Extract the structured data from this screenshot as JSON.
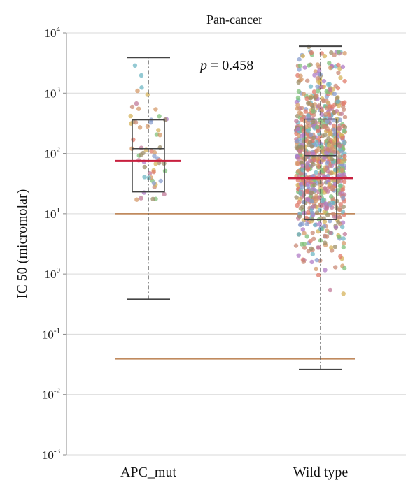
{
  "chart_data": {
    "type": "box-scatter",
    "title": "Pan-cancer",
    "ylabel": "IC 50 (micromolar)",
    "xlabel": "",
    "yscale": "log10",
    "ylim": [
      0.001,
      10000
    ],
    "yticks": [
      {
        "value": 0.001,
        "base": "10",
        "exp": "-3"
      },
      {
        "value": 0.01,
        "base": "10",
        "exp": "-2"
      },
      {
        "value": 0.1,
        "base": "10",
        "exp": "-1"
      },
      {
        "value": 1,
        "base": "10",
        "exp": "0"
      },
      {
        "value": 10,
        "base": "10",
        "exp": "1"
      },
      {
        "value": 100,
        "base": "10",
        "exp": "2"
      },
      {
        "value": 1000,
        "base": "10",
        "exp": "3"
      },
      {
        "value": 10000,
        "base": "10",
        "exp": "4"
      }
    ],
    "grid": true,
    "annotation": {
      "italic": "p",
      "text": " = 0.458"
    },
    "categories": [
      "APC_mut",
      "Wild type"
    ],
    "reference_lines": [
      10,
      0.039
    ],
    "boxes": [
      {
        "name": "APC_mut",
        "whisker_low": 0.38,
        "q1": 23,
        "median": 120,
        "q3": 360,
        "whisker_high": 3900,
        "mean": 75,
        "n_points": 60
      },
      {
        "name": "Wild type",
        "whisker_low": 0.026,
        "q1": 8,
        "median": 92,
        "q3": 370,
        "whisker_high": 6000,
        "mean": 39,
        "n_points": 900
      }
    ],
    "colors": {
      "mean_line": "#c8203f",
      "ref_line": "#c08a5e",
      "box": "#444444",
      "grid": "#d9d9d9",
      "points": [
        "#c98a75",
        "#d49a6a",
        "#8a9fcf",
        "#7fc07a",
        "#b07cc6",
        "#e07a6a",
        "#d6b35c",
        "#6fb7c4",
        "#c27b9a",
        "#9d8f6a"
      ]
    }
  }
}
